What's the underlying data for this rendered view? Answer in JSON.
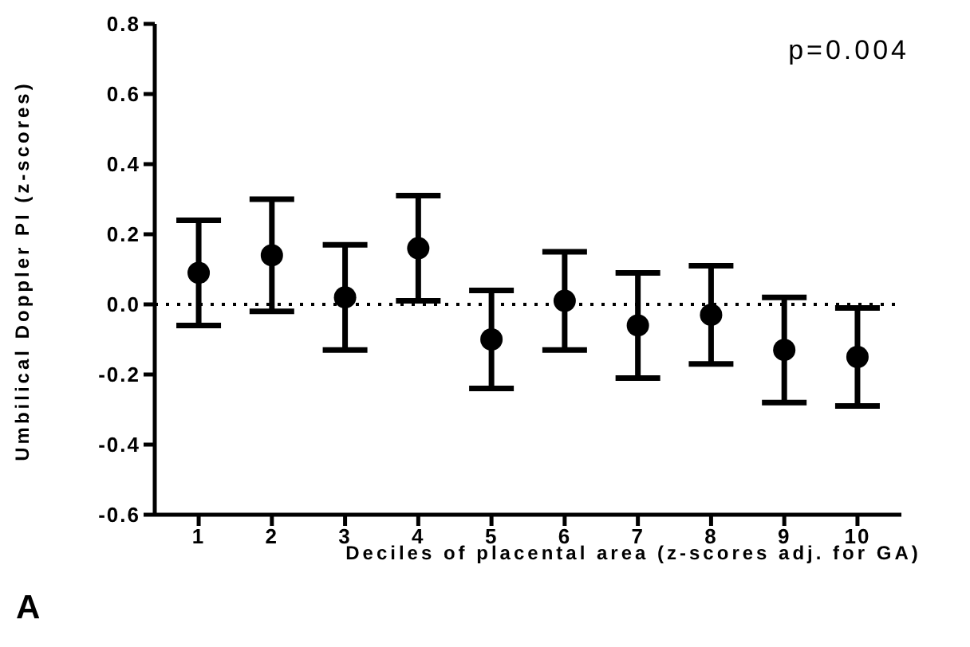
{
  "chart_data": {
    "type": "scatter",
    "xlabel": "Deciles of placental area (z-scores adj. for GA)",
    "ylabel": "Umbilical Doppler PI (z-scores)",
    "annotations": [
      "p=0.004",
      "A"
    ],
    "categories": [
      "1",
      "2",
      "3",
      "4",
      "5",
      "6",
      "7",
      "8",
      "9",
      "10"
    ],
    "values": [
      0.09,
      0.14,
      0.02,
      0.16,
      -0.1,
      0.01,
      -0.06,
      -0.03,
      -0.13,
      -0.15
    ],
    "errors": [
      0.15,
      0.16,
      0.15,
      0.15,
      0.14,
      0.14,
      0.15,
      0.14,
      0.15,
      0.14
    ],
    "color": "#000000",
    "marker": "circle",
    "ylim": [
      -0.6,
      0.8
    ],
    "yticks": [
      -0.6,
      -0.4,
      -0.2,
      {
        "value": 0,
        "label": "0.0"
      },
      0.2,
      0.4,
      0.6,
      0.8
    ],
    "ref_lines": [
      {
        "axis": "y",
        "value": 0,
        "line_style": "dotted",
        "color": "#000000"
      }
    ],
    "grid": false,
    "legend": false
  }
}
